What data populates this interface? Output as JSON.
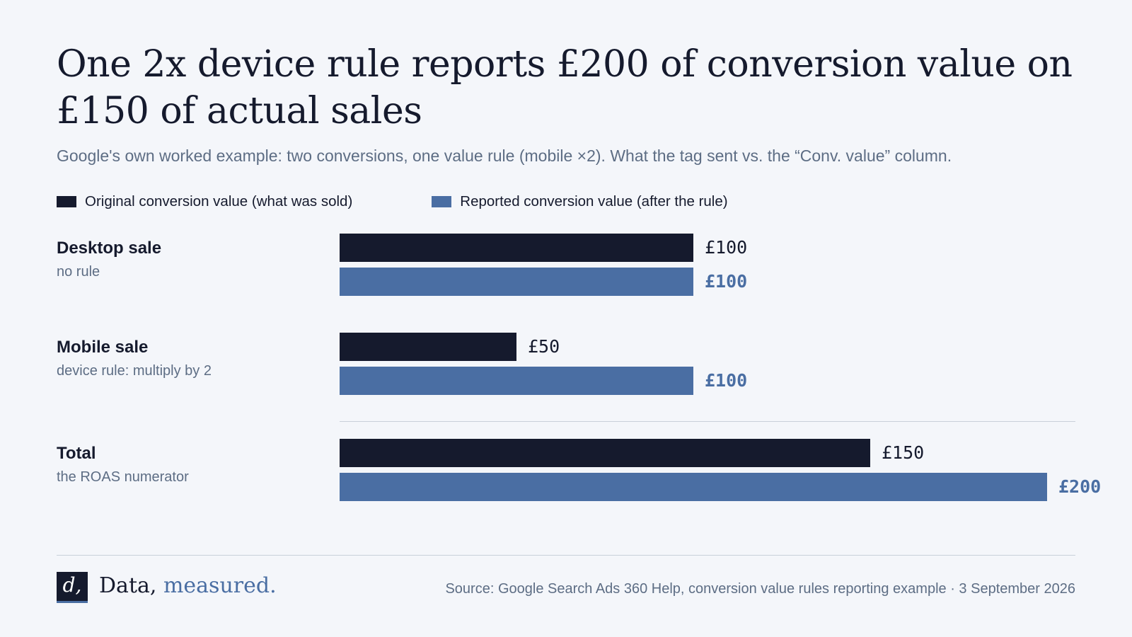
{
  "chart_data": {
    "type": "bar",
    "orientation": "horizontal",
    "title": "One 2x device rule reports £200 of conversion value on £150 of actual sales",
    "subtitle": "Google's own worked example: two conversions, one value rule (mobile ×2). What the tag sent vs. the “Conv. value” column.",
    "legend_position": "top-left",
    "grid": false,
    "xlim": [
      0,
      200
    ],
    "currency": "£",
    "categories": [
      {
        "name": "Desktop sale",
        "note": "no rule"
      },
      {
        "name": "Mobile sale",
        "note": "device rule: multiply by 2"
      },
      {
        "name": "Total",
        "note": "the ROAS numerator"
      }
    ],
    "series": [
      {
        "key": "orig",
        "name": "Original conversion value (what was sold)",
        "color": "#151a2d",
        "values": [
          100,
          50,
          150
        ],
        "labels": [
          "£100",
          "£50",
          "£150"
        ]
      },
      {
        "key": "rep",
        "name": "Reported conversion value (after the rule)",
        "color": "#4a6ea3",
        "values": [
          100,
          100,
          200
        ],
        "labels": [
          "£100",
          "£100",
          "£200"
        ]
      }
    ]
  },
  "footer": {
    "logo_mark": "d,",
    "brand_main": "Data,",
    "brand_accent": "measured.",
    "source": "Source: Google Search Ads 360 Help, conversion value rules reporting example · 3 September 2026"
  }
}
